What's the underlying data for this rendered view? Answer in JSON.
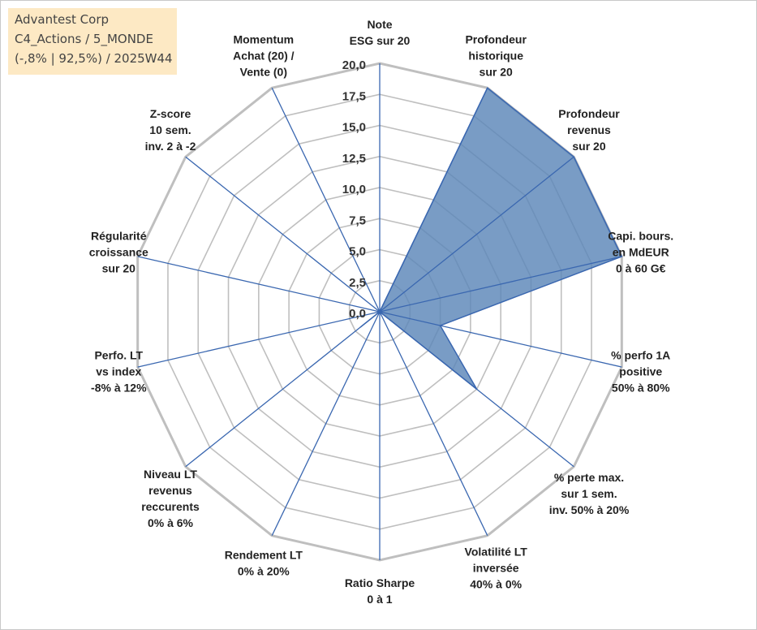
{
  "info_box": {
    "line1": "Advantest Corp",
    "line2": "C4_Actions / 5_MONDE",
    "line3": "(-,8% | 92,5%) / 2025W44"
  },
  "colors": {
    "grid": "#bfbfbf",
    "spoke": "#3a67b0",
    "fill": "#5b86b8",
    "stroke": "#3a67b0",
    "info_bg": "#fde9c4"
  },
  "chart_data": {
    "type": "radar",
    "ylim": [
      0,
      20
    ],
    "tick_labels": [
      "0,0",
      "2,5",
      "5,0",
      "7,5",
      "10,0",
      "12,5",
      "15,0",
      "17,5",
      "20,0"
    ],
    "grid": true,
    "categories": [
      [
        "Note",
        "ESG sur 20"
      ],
      [
        "Profondeur",
        "historique",
        "sur 20"
      ],
      [
        "Profondeur",
        "revenus",
        "sur 20"
      ],
      [
        "Capi. bours.",
        "en MdEUR",
        "0 à 60 G€"
      ],
      [
        "% perfo 1A",
        "positive",
        "50% à 80%"
      ],
      [
        "% perte max.",
        "sur 1 sem.",
        "inv. 50% à 20%"
      ],
      [
        "Volatilité LT",
        "inversée",
        "40% à 0%"
      ],
      [
        "Ratio Sharpe",
        "0 à 1"
      ],
      [
        "Rendement LT",
        "0% à 20%"
      ],
      [
        "Niveau LT",
        "revenus",
        "reccurents",
        "0% à 6%"
      ],
      [
        "Perfo. LT",
        "vs index",
        "-8% à 12%"
      ],
      [
        "Régularité",
        "croissance",
        "sur 20"
      ],
      [
        "Z-score",
        "10 sem.",
        "inv. 2 à -2"
      ],
      [
        "Momentum",
        "Achat (20) /",
        "Vente (0)"
      ]
    ],
    "series": [
      {
        "values": [
          0,
          20,
          20,
          20,
          5,
          10,
          0,
          0,
          0,
          2,
          0,
          0,
          0,
          0
        ]
      }
    ]
  }
}
